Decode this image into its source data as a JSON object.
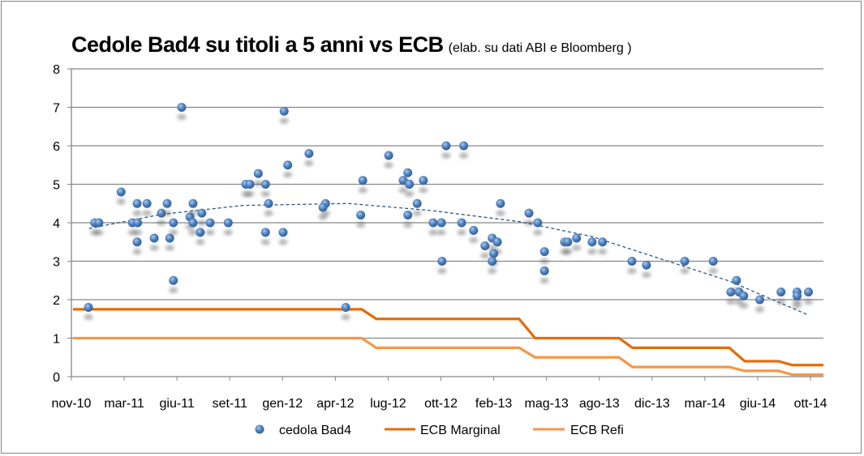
{
  "chart_data": {
    "type": "scatter",
    "title": "Cedole Bad4 su titoli a 5 anni vs ECB",
    "subtitle": "(elab. su dati ABI e Bloomberg )",
    "xlabel": "",
    "ylabel": "",
    "x_unit": "days since nov-10",
    "xlim": [
      0,
      1453
    ],
    "ylim": [
      0,
      8
    ],
    "y_ticks": [
      "0",
      "1",
      "2",
      "3",
      "4",
      "5",
      "6",
      "7",
      "8"
    ],
    "x_ticks": [
      {
        "x": 0,
        "label": "nov-10"
      },
      {
        "x": 102,
        "label": "mar-11"
      },
      {
        "x": 204,
        "label": "giu-11"
      },
      {
        "x": 306,
        "label": "set-11"
      },
      {
        "x": 408,
        "label": "gen-12"
      },
      {
        "x": 510,
        "label": "apr-12"
      },
      {
        "x": 612,
        "label": "lug-12"
      },
      {
        "x": 714,
        "label": "ott-12"
      },
      {
        "x": 816,
        "label": "feb-13"
      },
      {
        "x": 918,
        "label": "mag-13"
      },
      {
        "x": 1020,
        "label": "ago-13"
      },
      {
        "x": 1122,
        "label": "dic-13"
      },
      {
        "x": 1224,
        "label": "mar-14"
      },
      {
        "x": 1326,
        "label": "giu-14"
      },
      {
        "x": 1428,
        "label": "ott-14"
      }
    ],
    "grid": "horizontal",
    "legend_position": "bottom",
    "series": [
      {
        "name": "cedola Bad4",
        "type": "scatter",
        "color": "#4F81BD",
        "points": [
          [
            33,
            1.8
          ],
          [
            45,
            4.0
          ],
          [
            53,
            4.0
          ],
          [
            96,
            4.8
          ],
          [
            118,
            4.0
          ],
          [
            128,
            4.0
          ],
          [
            127,
            4.5
          ],
          [
            146,
            4.5
          ],
          [
            127,
            3.5
          ],
          [
            160,
            3.6
          ],
          [
            174,
            4.25
          ],
          [
            185,
            4.5
          ],
          [
            190,
            3.6
          ],
          [
            197,
            4.0
          ],
          [
            197,
            2.5
          ],
          [
            213,
            7.0
          ],
          [
            229,
            4.15
          ],
          [
            235,
            4.5
          ],
          [
            235,
            4.0
          ],
          [
            252,
            4.25
          ],
          [
            249,
            3.75
          ],
          [
            268,
            4.0
          ],
          [
            303,
            4.0
          ],
          [
            337,
            5.0
          ],
          [
            345,
            5.0
          ],
          [
            361,
            5.28
          ],
          [
            375,
            5.0
          ],
          [
            381,
            4.5
          ],
          [
            375,
            3.75
          ],
          [
            409,
            3.75
          ],
          [
            411,
            6.9
          ],
          [
            418,
            5.5
          ],
          [
            459,
            5.8
          ],
          [
            491,
            4.5
          ],
          [
            486,
            4.4
          ],
          [
            530,
            1.8
          ],
          [
            563,
            5.1
          ],
          [
            559,
            4.2
          ],
          [
            613,
            5.75
          ],
          [
            650,
            5.3
          ],
          [
            641,
            5.1
          ],
          [
            653,
            5.0
          ],
          [
            680,
            5.1
          ],
          [
            668,
            4.5
          ],
          [
            650,
            4.2
          ],
          [
            699,
            4.0
          ],
          [
            715,
            4.0
          ],
          [
            716,
            3.0
          ],
          [
            724,
            6.0
          ],
          [
            758,
            6.0
          ],
          [
            754,
            4.0
          ],
          [
            777,
            3.8
          ],
          [
            799,
            3.4
          ],
          [
            813,
            3.6
          ],
          [
            823,
            3.5
          ],
          [
            816,
            3.2
          ],
          [
            813,
            3.0
          ],
          [
            829,
            4.5
          ],
          [
            884,
            4.25
          ],
          [
            901,
            4.0
          ],
          [
            914,
            3.25
          ],
          [
            914,
            2.75
          ],
          [
            953,
            3.5
          ],
          [
            959,
            3.5
          ],
          [
            976,
            3.6
          ],
          [
            1006,
            3.5
          ],
          [
            1026,
            3.5
          ],
          [
            1083,
            3.0
          ],
          [
            1111,
            2.9
          ],
          [
            1185,
            3.0
          ],
          [
            1240,
            3.0
          ],
          [
            1285,
            2.5
          ],
          [
            1274,
            2.2
          ],
          [
            1290,
            2.2
          ],
          [
            1299,
            2.1
          ],
          [
            1330,
            2.0
          ],
          [
            1371,
            2.2
          ],
          [
            1402,
            2.2
          ],
          [
            1402,
            2.1
          ],
          [
            1424,
            2.2
          ]
        ]
      },
      {
        "name": "ECB Marginal",
        "type": "line",
        "color": "#E36C09",
        "points": [
          [
            3,
            1.75
          ],
          [
            561,
            1.75
          ],
          [
            589,
            1.5
          ],
          [
            865,
            1.5
          ],
          [
            896,
            1.0
          ],
          [
            1058,
            1.0
          ],
          [
            1084,
            0.75
          ],
          [
            1271,
            0.75
          ],
          [
            1301,
            0.4
          ],
          [
            1366,
            0.4
          ],
          [
            1393,
            0.3
          ],
          [
            1453,
            0.3
          ]
        ]
      },
      {
        "name": "ECB Refi",
        "type": "line",
        "color": "#F79646",
        "points": [
          [
            3,
            1.0
          ],
          [
            561,
            1.0
          ],
          [
            589,
            0.75
          ],
          [
            865,
            0.75
          ],
          [
            896,
            0.5
          ],
          [
            1058,
            0.5
          ],
          [
            1084,
            0.25
          ],
          [
            1271,
            0.25
          ],
          [
            1301,
            0.15
          ],
          [
            1366,
            0.15
          ],
          [
            1393,
            0.05
          ],
          [
            1453,
            0.05
          ]
        ]
      }
    ],
    "trendline": {
      "type": "polynomial",
      "style": "dashed",
      "color": "#1F4E79",
      "points": [
        [
          34,
          3.85
        ],
        [
          175,
          4.22
        ],
        [
          332,
          4.45
        ],
        [
          536,
          4.5
        ],
        [
          693,
          4.32
        ],
        [
          865,
          4.03
        ],
        [
          1006,
          3.64
        ],
        [
          1116,
          3.16
        ],
        [
          1272,
          2.48
        ],
        [
          1424,
          1.6
        ]
      ]
    }
  }
}
